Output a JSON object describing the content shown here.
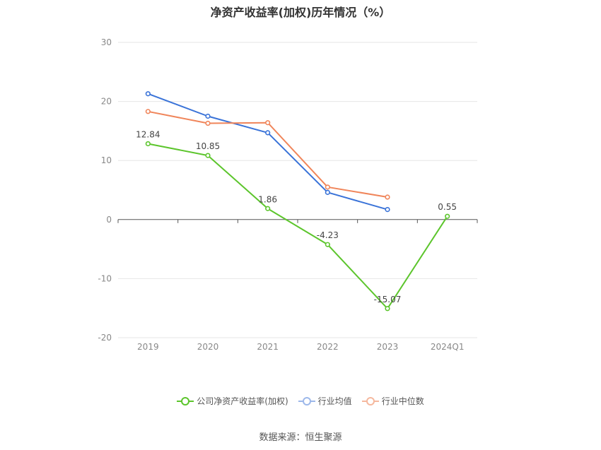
{
  "chart_data": {
    "type": "line",
    "title": "净资产收益率(加权)历年情况（%）",
    "categories": [
      "2019",
      "2020",
      "2021",
      "2022",
      "2023",
      "2024Q1"
    ],
    "ylim": [
      -20,
      30
    ],
    "yticks": [
      "30",
      "20",
      "10",
      "0",
      "-10",
      "-20"
    ],
    "ytick_values": [
      30,
      20,
      10,
      0,
      -10,
      -20
    ],
    "grid": true,
    "legend_position": "bottom",
    "series": [
      {
        "name": "公司净资产收益率(加权)",
        "color": "#5cc52c",
        "values": [
          12.84,
          10.85,
          1.86,
          -4.23,
          -15.07,
          0.55
        ],
        "labels": [
          "12.84",
          "10.85",
          "1.86",
          "-4.23",
          "-15.07",
          "0.55"
        ]
      },
      {
        "name": "行业均值",
        "color": "#3a73d8",
        "values": [
          21.3,
          17.5,
          14.7,
          4.6,
          1.7,
          null
        ]
      },
      {
        "name": "行业中位数",
        "color": "#f0855a",
        "values": [
          18.3,
          16.3,
          16.4,
          5.5,
          3.8,
          null
        ]
      }
    ]
  },
  "source": "数据来源：恒生聚源"
}
